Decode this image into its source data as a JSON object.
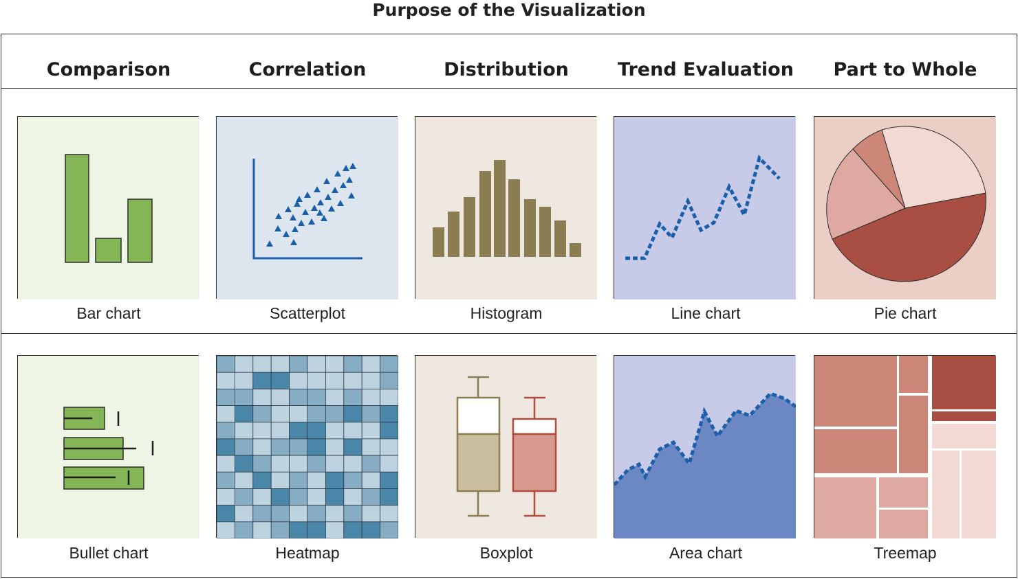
{
  "title": "Purpose of the Visualization",
  "columns": [
    "Comparison",
    "Correlation",
    "Distribution",
    "Trend Evaluation",
    "Part to Whole"
  ],
  "rows": [
    [
      "Bar chart",
      "Scatterplot",
      "Histogram",
      "Line chart",
      "Pie chart"
    ],
    [
      "Bullet chart",
      "Heatmap",
      "Boxplot",
      "Area chart",
      "Treemap"
    ]
  ],
  "colors": {
    "comparison_bg": "#eff6e6",
    "comparison_fill": "#84b557",
    "correlation_bg": "#dde6ee",
    "correlation_mark": "#1a5fa8",
    "distribution_bg": "#eee8e1",
    "distribution_fill": "#8b7d52",
    "trend_bg": "#c8cbe8",
    "trend_line": "#1a5fa8",
    "area_fill": "#6b88c5",
    "part_bg": "#ebcfc7",
    "part_dark": "#a84e43",
    "part_mid": "#cd8779",
    "part_light": "#dea9a0",
    "part_pale": "#f2d9d3"
  }
}
